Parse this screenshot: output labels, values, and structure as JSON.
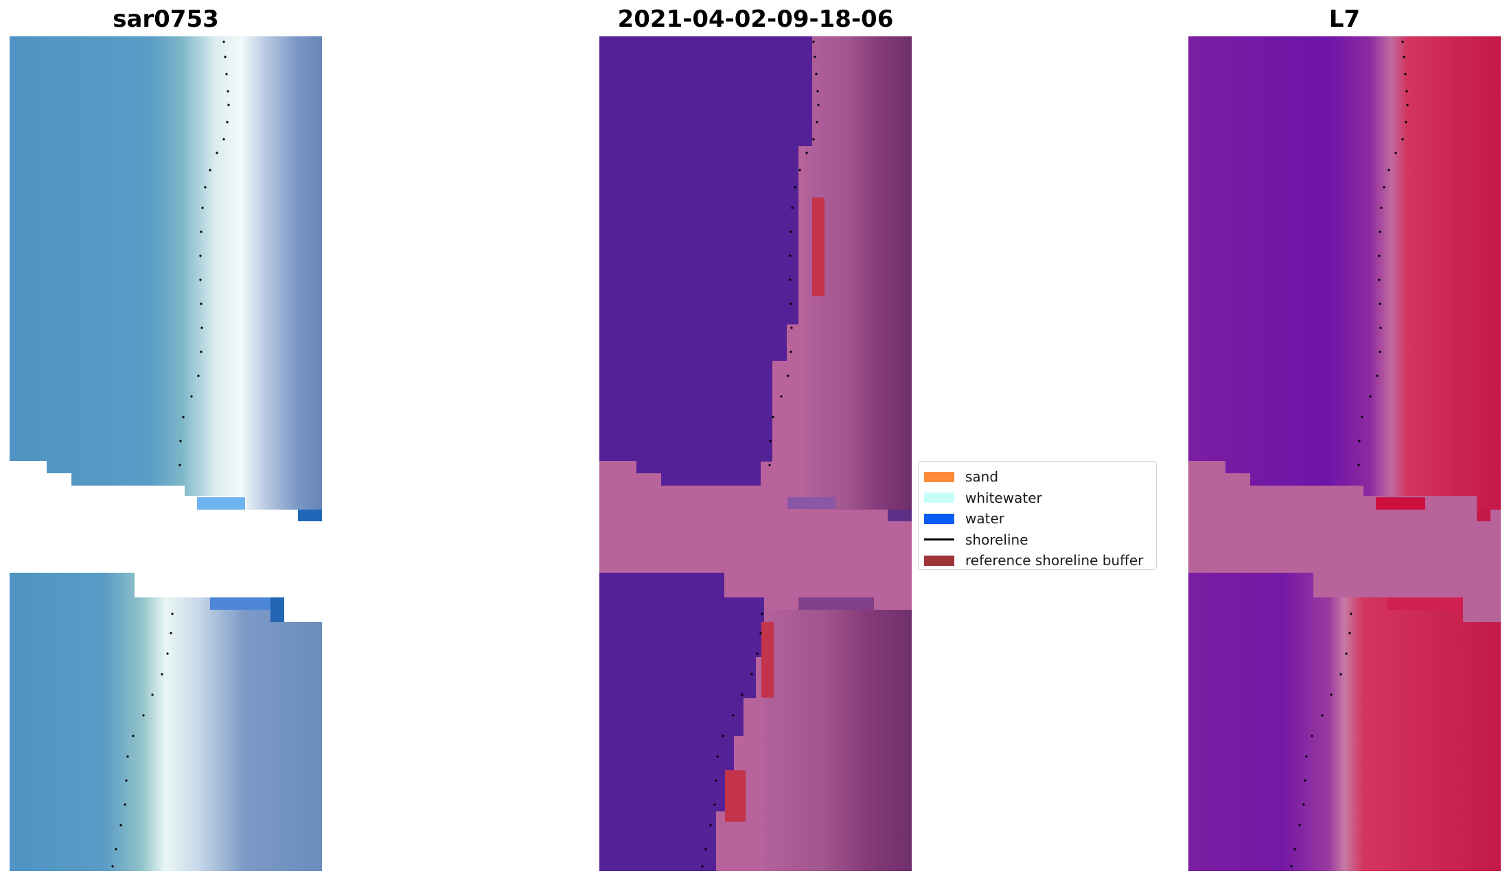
{
  "titles": {
    "rgb": "sar0753",
    "classification": "2021-04-02-09-18-06",
    "mndwi": "L7"
  },
  "legend": {
    "items": [
      {
        "label": "sand",
        "color": "#ff8c3a",
        "kind": "patch"
      },
      {
        "label": "whitewater",
        "color": "#c6fffa",
        "kind": "patch"
      },
      {
        "label": "water",
        "color": "#0a5cf2",
        "kind": "patch"
      },
      {
        "label": "shoreline",
        "color": "#000000",
        "kind": "line"
      },
      {
        "label": "reference shoreline buffer",
        "color": "#9e3338",
        "kind": "patch"
      }
    ]
  },
  "colors": {
    "rgb_water": "#4f93c4",
    "rgb_whitewater": "#e6f4f4",
    "rgb_offshore": "#6c8fbf",
    "class_water": "#542296",
    "class_pink": "#b8639b",
    "class_dark": "#7a3574",
    "class_buffer": "#c3344a",
    "mndwi_purple": "#7a1aa0",
    "mndwi_pink": "#b8639b",
    "mndwi_red": "#c21a4c",
    "shoreline": "#000000"
  }
}
